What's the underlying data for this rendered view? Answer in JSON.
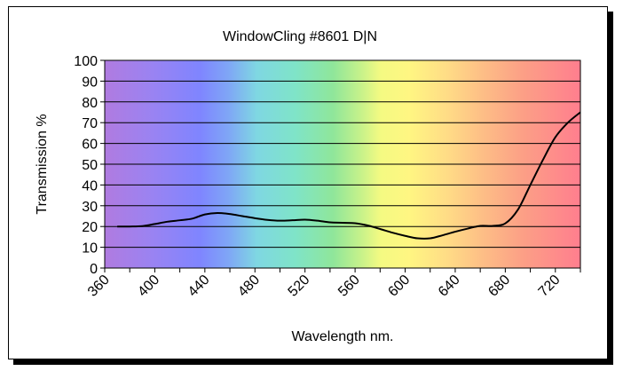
{
  "chart_data": {
    "type": "line",
    "title": "WindowCling #8601 D|N",
    "xlabel": "Wavelength nm.",
    "ylabel": "Transmission %",
    "xlim": [
      360,
      740
    ],
    "ylim": [
      0,
      100
    ],
    "x_ticks": [
      360,
      400,
      440,
      480,
      520,
      560,
      600,
      640,
      680,
      720
    ],
    "y_ticks": [
      0,
      10,
      20,
      30,
      40,
      50,
      60,
      70,
      80,
      90,
      100
    ],
    "grid": true,
    "background": "visible-spectrum gradient",
    "line_color": "#000000",
    "series": [
      {
        "x": [
          370,
          380,
          390,
          400,
          410,
          420,
          430,
          440,
          450,
          460,
          470,
          480,
          490,
          500,
          510,
          520,
          530,
          540,
          550,
          560,
          570,
          580,
          590,
          600,
          610,
          620,
          630,
          640,
          650,
          660,
          670,
          680,
          690,
          700,
          710,
          720,
          730,
          740
        ],
        "y": [
          20,
          20,
          20.2,
          21.2,
          22.3,
          23,
          23.8,
          25.8,
          26.5,
          26,
          25,
          24,
          23.2,
          22.8,
          23,
          23.3,
          22.8,
          22,
          21.8,
          21.6,
          20.5,
          18.8,
          17,
          15.5,
          14.3,
          14.3,
          15.8,
          17.5,
          19,
          20.3,
          20.3,
          21.5,
          28,
          40,
          52,
          63,
          70,
          75
        ]
      }
    ]
  }
}
